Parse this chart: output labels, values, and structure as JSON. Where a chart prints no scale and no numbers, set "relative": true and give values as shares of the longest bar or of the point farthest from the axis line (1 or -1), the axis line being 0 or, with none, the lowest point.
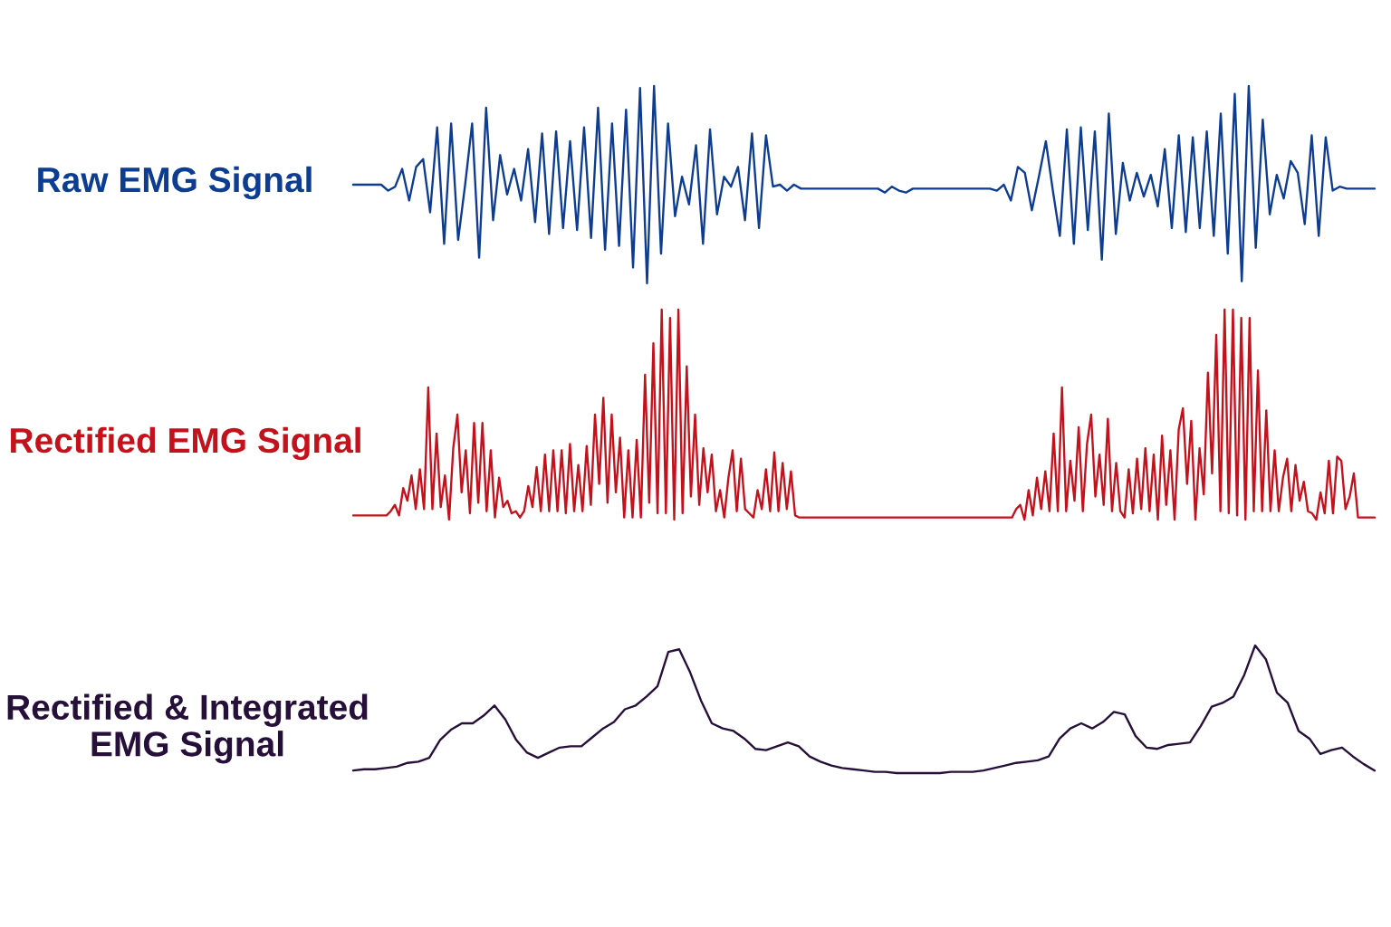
{
  "chart_data": [
    {
      "type": "line",
      "relative": true,
      "categories": [
        null,
        null,
        null,
        null,
        null,
        null,
        null,
        null,
        null,
        null,
        null,
        null,
        null,
        null,
        null,
        null,
        null,
        null,
        null,
        null,
        null,
        null,
        null,
        null,
        null,
        null,
        null,
        null,
        null,
        null,
        null,
        null,
        null,
        null,
        null,
        null,
        null,
        null,
        null,
        null,
        null,
        null,
        null,
        null,
        null,
        null,
        null,
        null,
        null,
        null,
        null,
        null,
        null,
        null,
        null,
        null,
        null,
        null,
        null,
        null,
        null,
        null,
        null,
        null,
        null,
        null,
        null,
        null,
        null,
        null,
        null,
        null,
        null,
        null,
        null,
        null,
        null,
        null,
        null,
        null,
        null,
        null,
        null,
        null,
        null,
        null,
        null,
        null,
        null,
        null,
        null,
        null,
        null,
        null,
        null,
        null,
        null,
        null,
        null,
        null,
        null,
        null,
        null,
        null,
        null,
        null,
        null,
        null,
        null,
        null,
        null,
        null,
        null,
        null,
        null,
        null,
        null,
        null,
        null,
        null,
        null,
        null,
        null,
        null,
        null,
        null,
        null,
        null,
        null,
        null,
        null,
        null,
        null,
        null,
        null,
        null,
        null,
        null,
        null,
        null,
        null,
        null,
        null,
        null,
        null,
        null,
        null
      ],
      "series": [
        {
          "name": "Raw EMG Signal",
          "color": "#0c3d93",
          "values": [
            0.5,
            0.5,
            0.5,
            0.5,
            0.5,
            0.47,
            0.49,
            0.58,
            0.42,
            0.59,
            0.63,
            0.36,
            0.79,
            0.2,
            0.81,
            0.22,
            0.5,
            0.81,
            0.13,
            0.89,
            0.32,
            0.65,
            0.45,
            0.58,
            0.42,
            0.68,
            0.31,
            0.76,
            0.25,
            0.77,
            0.28,
            0.72,
            0.27,
            0.79,
            0.23,
            0.89,
            0.17,
            0.81,
            0.19,
            0.88,
            0.08,
            0.99,
            0.0,
            1.0,
            0.15,
            0.81,
            0.34,
            0.54,
            0.4,
            0.7,
            0.2,
            0.78,
            0.35,
            0.54,
            0.49,
            0.59,
            0.32,
            0.76,
            0.28,
            0.75,
            0.49,
            0.5,
            0.47,
            0.5,
            0.48,
            0.48,
            0.48,
            0.48,
            0.48,
            0.48,
            0.48,
            0.48,
            0.48,
            0.48,
            0.48,
            0.48,
            0.46,
            0.49,
            0.47,
            0.46,
            0.48,
            0.48,
            0.48,
            0.48,
            0.48,
            0.48,
            0.48,
            0.48,
            0.48,
            0.48,
            0.48,
            0.48,
            0.47,
            0.5,
            0.42,
            0.59,
            0.56,
            0.37,
            0.54,
            0.72,
            0.47,
            0.24,
            0.78,
            0.2,
            0.79,
            0.27,
            0.77,
            0.12,
            0.86,
            0.25,
            0.61,
            0.42,
            0.56,
            0.44,
            0.55,
            0.39,
            0.68,
            0.28,
            0.75,
            0.26,
            0.74,
            0.28,
            0.77,
            0.24,
            0.86,
            0.15,
            0.96,
            0.01,
            1.0,
            0.18,
            0.83,
            0.35,
            0.55,
            0.43,
            0.62,
            0.56,
            0.3,
            0.75,
            0.24,
            0.74,
            0.47,
            0.49,
            0.48,
            0.48,
            0.48,
            0.48,
            0.48
          ]
        }
      ]
    },
    {
      "type": "line",
      "relative": true,
      "categories": [
        null,
        null,
        null,
        null,
        null,
        null,
        null,
        null,
        null,
        null,
        null,
        null,
        null,
        null,
        null,
        null,
        null,
        null,
        null,
        null,
        null,
        null,
        null,
        null,
        null,
        null,
        null,
        null,
        null,
        null,
        null,
        null,
        null,
        null,
        null,
        null,
        null,
        null,
        null,
        null,
        null,
        null,
        null,
        null,
        null,
        null,
        null,
        null,
        null,
        null,
        null,
        null,
        null,
        null,
        null,
        null,
        null,
        null,
        null,
        null,
        null,
        null,
        null,
        null,
        null,
        null,
        null,
        null,
        null,
        null,
        null,
        null,
        null,
        null,
        null,
        null,
        null,
        null,
        null,
        null,
        null,
        null,
        null,
        null,
        null,
        null,
        null,
        null,
        null,
        null,
        null,
        null,
        null,
        null,
        null,
        null,
        null,
        null,
        null,
        null,
        null,
        null,
        null,
        null,
        null,
        null,
        null,
        null,
        null,
        null,
        null,
        null,
        null,
        null,
        null,
        null,
        null,
        null,
        null,
        null,
        null,
        null,
        null,
        null,
        null,
        null,
        null,
        null,
        null,
        null,
        null,
        null,
        null,
        null,
        null,
        null,
        null,
        null,
        null,
        null,
        null,
        null,
        null,
        null,
        null,
        null,
        null,
        null,
        null,
        null,
        null,
        null,
        null,
        null,
        null,
        null,
        null,
        null,
        null,
        null,
        null,
        null,
        null,
        null,
        null,
        null,
        null,
        null,
        null,
        null,
        null,
        null,
        null,
        null,
        null,
        null,
        null,
        null,
        null,
        null,
        null,
        null,
        null,
        null,
        null,
        null,
        null,
        null,
        null,
        null,
        null,
        null,
        null,
        null,
        null,
        null,
        null,
        null,
        null,
        null,
        null,
        null,
        null,
        null,
        null,
        null,
        null,
        null,
        null,
        null,
        null,
        null,
        null,
        null,
        null,
        null,
        null,
        null,
        null,
        null,
        null,
        null,
        null,
        null,
        null,
        null,
        null,
        null,
        null,
        null,
        null,
        null,
        null,
        null,
        null,
        null,
        null,
        null,
        null,
        null,
        null,
        null,
        null,
        null,
        null,
        null
      ],
      "series": [
        {
          "name": "Rectified EMG Signal",
          "color": "#c4121c",
          "values": [
            0.02,
            0.02,
            0.02,
            0.02,
            0.02,
            0.02,
            0.02,
            0.02,
            0.02,
            0.04,
            0.07,
            0.02,
            0.15,
            0.09,
            0.21,
            0.05,
            0.24,
            0.05,
            0.63,
            0.05,
            0.41,
            0.06,
            0.21,
            0.0,
            0.34,
            0.5,
            0.13,
            0.33,
            0.03,
            0.46,
            0.08,
            0.46,
            0.04,
            0.33,
            0.01,
            0.2,
            0.06,
            0.09,
            0.03,
            0.04,
            0.01,
            0.04,
            0.16,
            0.06,
            0.25,
            0.04,
            0.31,
            0.04,
            0.33,
            0.04,
            0.33,
            0.03,
            0.36,
            0.04,
            0.26,
            0.04,
            0.35,
            0.07,
            0.5,
            0.17,
            0.58,
            0.08,
            0.5,
            0.13,
            0.39,
            0.01,
            0.33,
            0.01,
            0.38,
            0.01,
            0.69,
            0.08,
            0.84,
            0.03,
            1.0,
            0.03,
            0.96,
            0.0,
            1.0,
            0.03,
            0.73,
            0.11,
            0.5,
            0.07,
            0.34,
            0.13,
            0.31,
            0.04,
            0.14,
            0.01,
            0.2,
            0.33,
            0.04,
            0.29,
            0.05,
            0.03,
            0.01,
            0.14,
            0.05,
            0.24,
            0.04,
            0.32,
            0.04,
            0.27,
            0.05,
            0.23,
            0.02,
            0.01,
            0.01,
            0.01,
            0.01,
            0.01,
            0.01,
            0.01,
            0.01,
            0.01,
            0.01,
            0.01,
            0.01,
            0.01,
            0.01,
            0.01,
            0.01,
            0.01,
            0.01,
            0.01,
            0.01,
            0.01,
            0.01,
            0.01,
            0.01,
            0.01,
            0.01,
            0.01,
            0.01,
            0.01,
            0.01,
            0.01,
            0.01,
            0.01,
            0.01,
            0.01,
            0.01,
            0.01,
            0.01,
            0.01,
            0.01,
            0.01,
            0.01,
            0.01,
            0.01,
            0.01,
            0.01,
            0.01,
            0.01,
            0.01,
            0.01,
            0.01,
            0.01,
            0.05,
            0.07,
            0.0,
            0.14,
            0.02,
            0.2,
            0.05,
            0.23,
            0.04,
            0.41,
            0.04,
            0.63,
            0.04,
            0.28,
            0.09,
            0.44,
            0.04,
            0.36,
            0.5,
            0.11,
            0.31,
            0.07,
            0.48,
            0.04,
            0.27,
            0.04,
            0.01,
            0.24,
            0.03,
            0.29,
            0.05,
            0.34,
            0.04,
            0.31,
            0.0,
            0.4,
            0.07,
            0.33,
            0.0,
            0.43,
            0.53,
            0.17,
            0.47,
            0.0,
            0.34,
            0.12,
            0.7,
            0.22,
            0.88,
            0.04,
            1.0,
            0.03,
            1.0,
            0.02,
            0.96,
            0.0,
            0.96,
            0.04,
            0.71,
            0.04,
            0.52,
            0.04,
            0.33,
            0.04,
            0.2,
            0.29,
            0.04,
            0.26,
            0.09,
            0.18,
            0.04,
            0.03,
            0.0,
            0.13,
            0.03,
            0.28,
            0.03,
            0.3,
            0.28,
            0.05,
            0.11,
            0.22,
            0.01,
            0.01,
            0.01,
            0.01,
            0.01
          ]
        }
      ]
    },
    {
      "type": "line",
      "relative": true,
      "categories": [
        null,
        null,
        null,
        null,
        null,
        null,
        null,
        null,
        null,
        null,
        null,
        null,
        null,
        null,
        null,
        null,
        null,
        null,
        null,
        null,
        null,
        null,
        null,
        null,
        null,
        null,
        null,
        null,
        null,
        null,
        null,
        null,
        null,
        null,
        null,
        null,
        null,
        null,
        null,
        null,
        null,
        null,
        null,
        null,
        null,
        null,
        null,
        null,
        null,
        null,
        null,
        null,
        null,
        null,
        null,
        null,
        null,
        null,
        null,
        null,
        null,
        null,
        null,
        null,
        null,
        null,
        null,
        null,
        null,
        null,
        null,
        null,
        null,
        null,
        null,
        null,
        null,
        null,
        null,
        null,
        null,
        null,
        null,
        null,
        null,
        null,
        null,
        null,
        null,
        null,
        null,
        null,
        null,
        null,
        null
      ],
      "series": [
        {
          "name": "Rectified & Integrated\nEMG Signal",
          "color": "#26103a",
          "values": [
            0.02,
            0.03,
            0.03,
            0.04,
            0.05,
            0.08,
            0.09,
            0.12,
            0.26,
            0.34,
            0.39,
            0.39,
            0.45,
            0.53,
            0.42,
            0.26,
            0.16,
            0.12,
            0.16,
            0.2,
            0.21,
            0.21,
            0.28,
            0.35,
            0.4,
            0.5,
            0.53,
            0.6,
            0.68,
            0.95,
            0.97,
            0.79,
            0.57,
            0.39,
            0.35,
            0.33,
            0.27,
            0.19,
            0.18,
            0.21,
            0.24,
            0.21,
            0.13,
            0.09,
            0.06,
            0.04,
            0.03,
            0.02,
            0.01,
            0.01,
            0.0,
            0.0,
            0.0,
            0.0,
            0.0,
            0.01,
            0.01,
            0.01,
            0.02,
            0.04,
            0.06,
            0.08,
            0.09,
            0.1,
            0.13,
            0.27,
            0.35,
            0.39,
            0.35,
            0.4,
            0.48,
            0.46,
            0.29,
            0.2,
            0.19,
            0.22,
            0.23,
            0.24,
            0.37,
            0.52,
            0.55,
            0.6,
            0.77,
            1.0,
            0.89,
            0.63,
            0.55,
            0.33,
            0.27,
            0.15,
            0.18,
            0.2,
            0.13,
            0.07,
            0.02
          ]
        }
      ]
    }
  ]
}
